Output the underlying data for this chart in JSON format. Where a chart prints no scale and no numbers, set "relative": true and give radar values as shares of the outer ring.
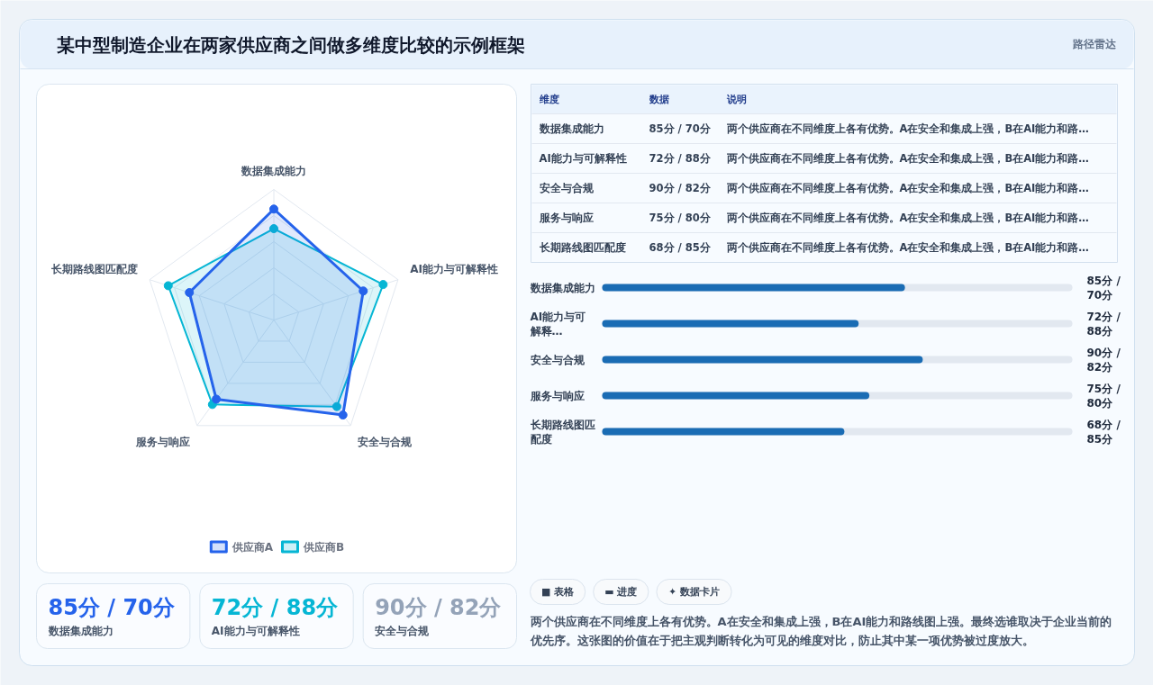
{
  "chart_data": [
    {
      "type": "radar",
      "title": "某中型制造企业在两家供应商之间做多维度比较的示例框架",
      "categories": [
        "数据集成能力",
        "AI能力与可解释性",
        "安全与合规",
        "服务与响应",
        "长期路线图匹配度"
      ],
      "relative": true,
      "series": [
        {
          "name": "供应商A",
          "color": "#2563eb",
          "values": [
            0.85,
            0.72,
            0.9,
            0.75,
            0.68
          ]
        },
        {
          "name": "供应商B",
          "color": "#06b6d4",
          "values": [
            0.7,
            0.88,
            0.82,
            0.8,
            0.85
          ]
        }
      ],
      "grid": true,
      "legend": "bottom",
      "marker": "circle"
    },
    {
      "type": "other",
      "annotations": [
        "路径雷达"
      ],
      "categories": [
        "维度",
        "数据",
        "说明"
      ],
      "cell_labels": [
        [
          "数据集成能力",
          "85分 / 70分",
          "两个供应商在不同维度上各有优势。A在安全和集成上强，B在AI能力和路…"
        ],
        [
          "AI能力与可解释性",
          "72分 / 88分",
          "两个供应商在不同维度上各有优势。A在安全和集成上强，B在AI能力和路…"
        ],
        [
          "安全与合规",
          "90分 / 82分",
          "两个供应商在不同维度上各有优势。A在安全和集成上强，B在AI能力和路…"
        ],
        [
          "服务与响应",
          "75分 / 80分",
          "两个供应商在不同维度上各有优势。A在安全和集成上强，B在AI能力和路…"
        ],
        [
          "长期路线图匹配度",
          "68分 / 85分",
          "两个供应商在不同维度上各有优势。A在安全和集成上强，B在AI能力和路…"
        ]
      ]
    },
    {
      "type": "bar",
      "orientation": "horizontal",
      "categories": [
        "数据集成能力",
        "AI能力与可解释…",
        "安全与合规",
        "服务与响应",
        "长期路线图匹配度"
      ],
      "values": [
        85,
        72,
        90,
        75,
        68
      ],
      "value_labels": [
        "85分 / 70分",
        "72分 / 88分",
        "90分 / 82分",
        "75分 / 80分",
        "68分 / 85分"
      ],
      "xlim": [
        0,
        132
      ],
      "color": "#1a6cb4",
      "tick_labels": "y"
    },
    {
      "type": "other",
      "categories": [
        "数据集成能力",
        "AI能力与可解释性",
        "安全与合规"
      ],
      "value_labels": [
        "85分 / 70分",
        "72分 / 88分",
        "90分 / 82分"
      ],
      "colors": [
        "#2563eb",
        "#06b6d4",
        "#94a3b8"
      ]
    },
    {
      "type": "other",
      "categories": [
        "■ 表格",
        "▬ 进度",
        "✦ 数据卡片"
      ],
      "annotations": [
        "两个供应商在不同维度上各有优势。A在安全和集成上强，B在AI能力和路线图上强。最终选谁取决于企业当前的优先序。这张图的价值在于把主观判断转化为可见的维度对比，防止其中某一项优势被过度放大。"
      ]
    }
  ]
}
